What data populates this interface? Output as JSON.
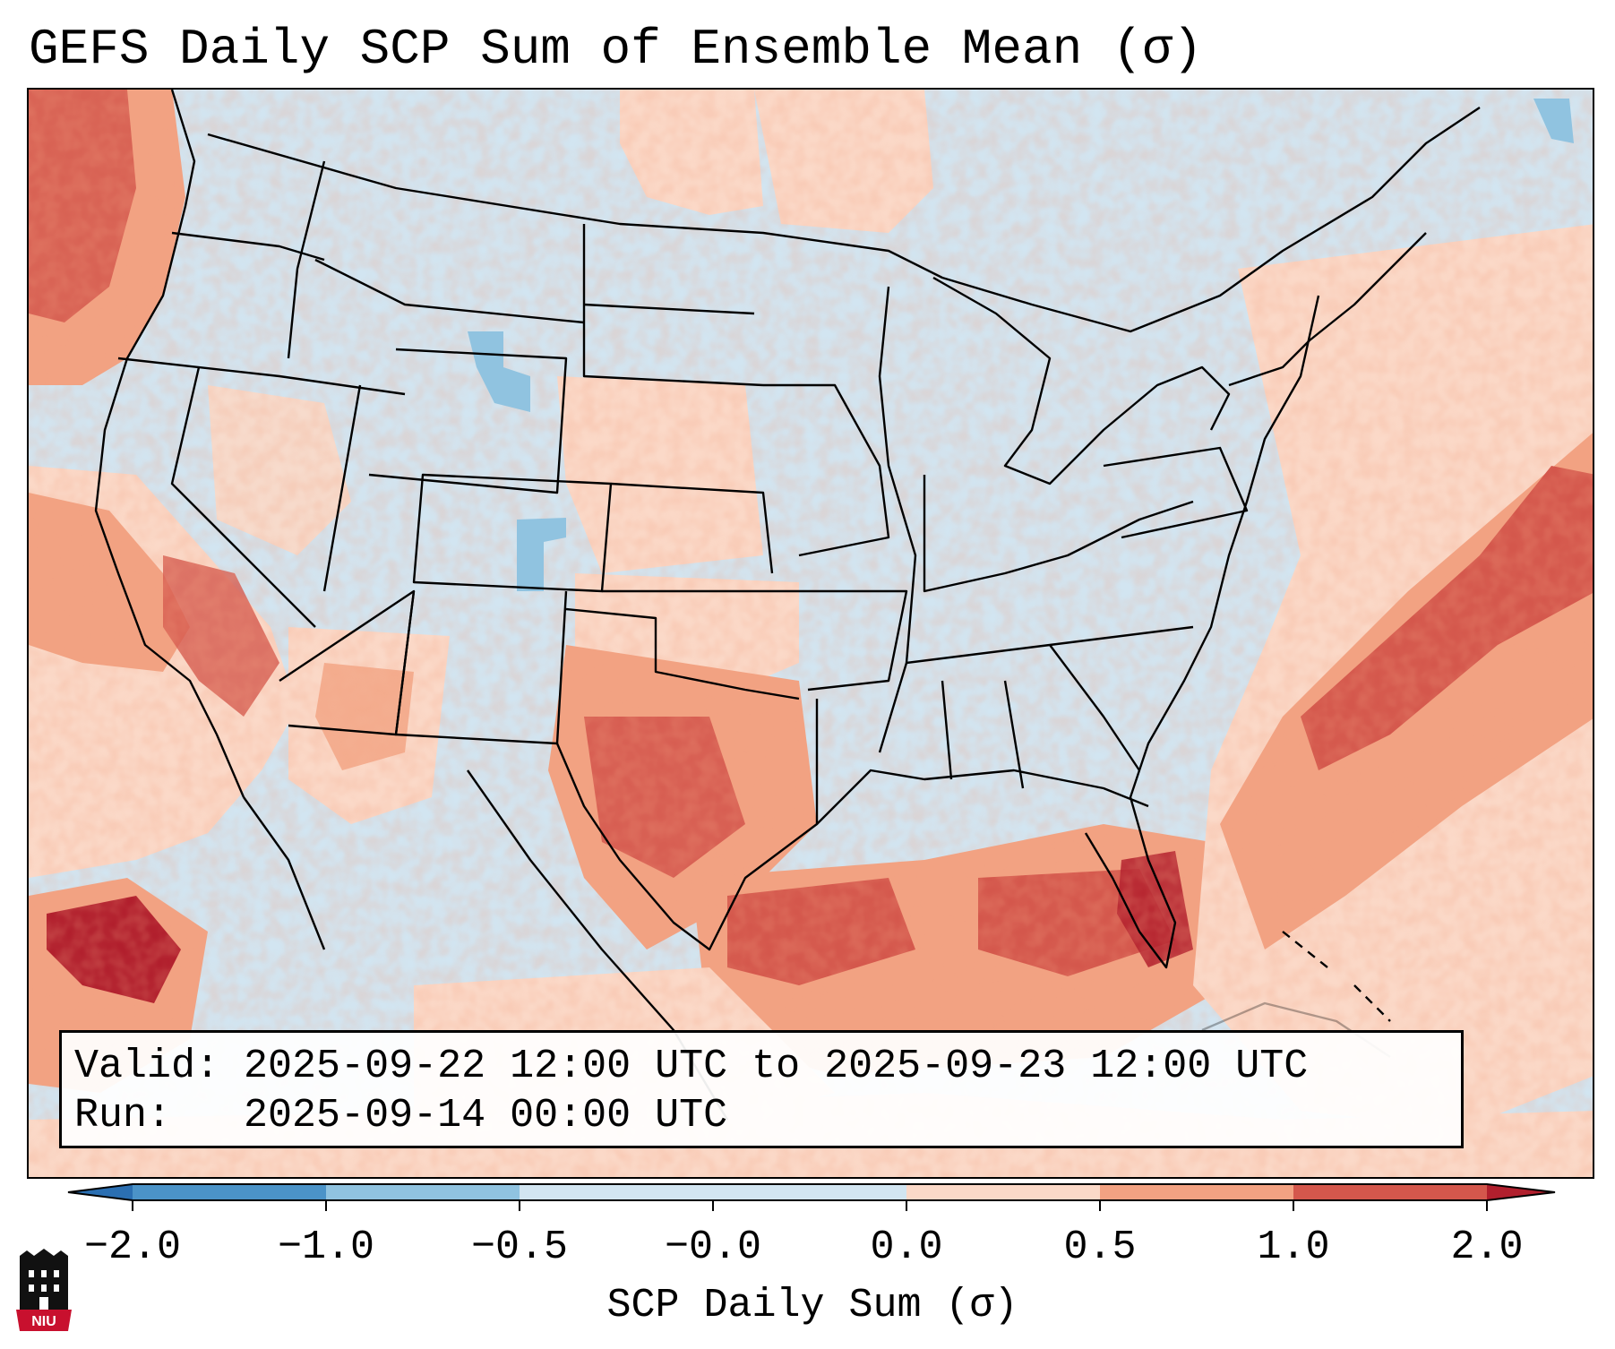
{
  "title": "GEFS Daily SCP Sum of Ensemble Mean (σ)",
  "info": {
    "valid_label": "Valid:",
    "valid_value": "2025-09-22 12:00 UTC to 2025-09-23 12:00 UTC",
    "run_label": "Run:",
    "run_value": "2025-09-14 00:00 UTC"
  },
  "colorbar": {
    "label": "SCP Daily Sum (σ)",
    "ticks": [
      "−2.0",
      "−1.0",
      "−0.5",
      "−0.0",
      "0.0",
      "0.5",
      "1.0",
      "2.0"
    ],
    "colors": {
      "below_min": "#2b6fb2",
      "bin_m2_m1": "#4b93c8",
      "bin_m1_m05": "#90c3e0",
      "bin_m05_0": "#d2e5f1",
      "bin_0_05": "#fbd9c8",
      "bin_05_1": "#f2a282",
      "bin_1_2": "#d4574c",
      "above_max": "#b11f2d"
    }
  },
  "map": {
    "region": "Continental United States",
    "background_color": "#d2e5f1",
    "boundary_color": "#000000"
  },
  "logo": {
    "text": "NIU",
    "color": "#c8102e"
  }
}
